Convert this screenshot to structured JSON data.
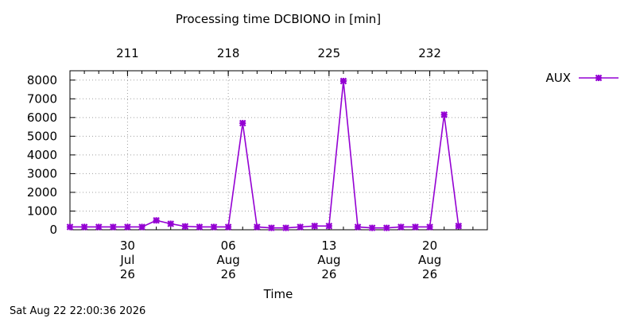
{
  "chart_data": {
    "type": "line",
    "title": "Processing time DCBIONO in [min]",
    "xlabel": "Time",
    "ylabel": "",
    "ylim": [
      0,
      8500
    ],
    "yticks": [
      0,
      1000,
      2000,
      3000,
      4000,
      5000,
      6000,
      7000,
      8000
    ],
    "xlim": [
      "2026-07-26",
      "2026-08-24"
    ],
    "x_ticks": [
      {
        "date": "2026-07-30",
        "label": [
          "30",
          "Jul",
          "26"
        ]
      },
      {
        "date": "2026-08-06",
        "label": [
          "06",
          "Aug",
          "26"
        ]
      },
      {
        "date": "2026-08-13",
        "label": [
          "13",
          "Aug",
          "26"
        ]
      },
      {
        "date": "2026-08-20",
        "label": [
          "20",
          "Aug",
          "26"
        ]
      }
    ],
    "x2_ticks": [
      {
        "date": "2026-07-30",
        "label": "211"
      },
      {
        "date": "2026-08-06",
        "label": "218"
      },
      {
        "date": "2026-08-13",
        "label": "225"
      },
      {
        "date": "2026-08-20",
        "label": "232"
      }
    ],
    "grid": true,
    "legend_position": "top-right, outside plot",
    "series": [
      {
        "name": "AUX",
        "color": "#9400d3",
        "marker": "x-star",
        "x": [
          "2026-07-26",
          "2026-07-27",
          "2026-07-28",
          "2026-07-29",
          "2026-07-30",
          "2026-07-31",
          "2026-08-01",
          "2026-08-02",
          "2026-08-03",
          "2026-08-04",
          "2026-08-05",
          "2026-08-06",
          "2026-08-07",
          "2026-08-08",
          "2026-08-09",
          "2026-08-10",
          "2026-08-11",
          "2026-08-12",
          "2026-08-13",
          "2026-08-14",
          "2026-08-15",
          "2026-08-16",
          "2026-08-17",
          "2026-08-18",
          "2026-08-19",
          "2026-08-20",
          "2026-08-21",
          "2026-08-22",
          "2026-08-23"
        ],
        "values": [
          150,
          150,
          150,
          150,
          150,
          150,
          500,
          320,
          180,
          150,
          150,
          150,
          5700,
          150,
          100,
          100,
          150,
          200,
          200,
          7950,
          150,
          100,
          100,
          150,
          150,
          150,
          6150,
          200,
          null
        ]
      }
    ]
  },
  "footer": {
    "timestamp": "Sat Aug 22 22:00:36 2026"
  }
}
